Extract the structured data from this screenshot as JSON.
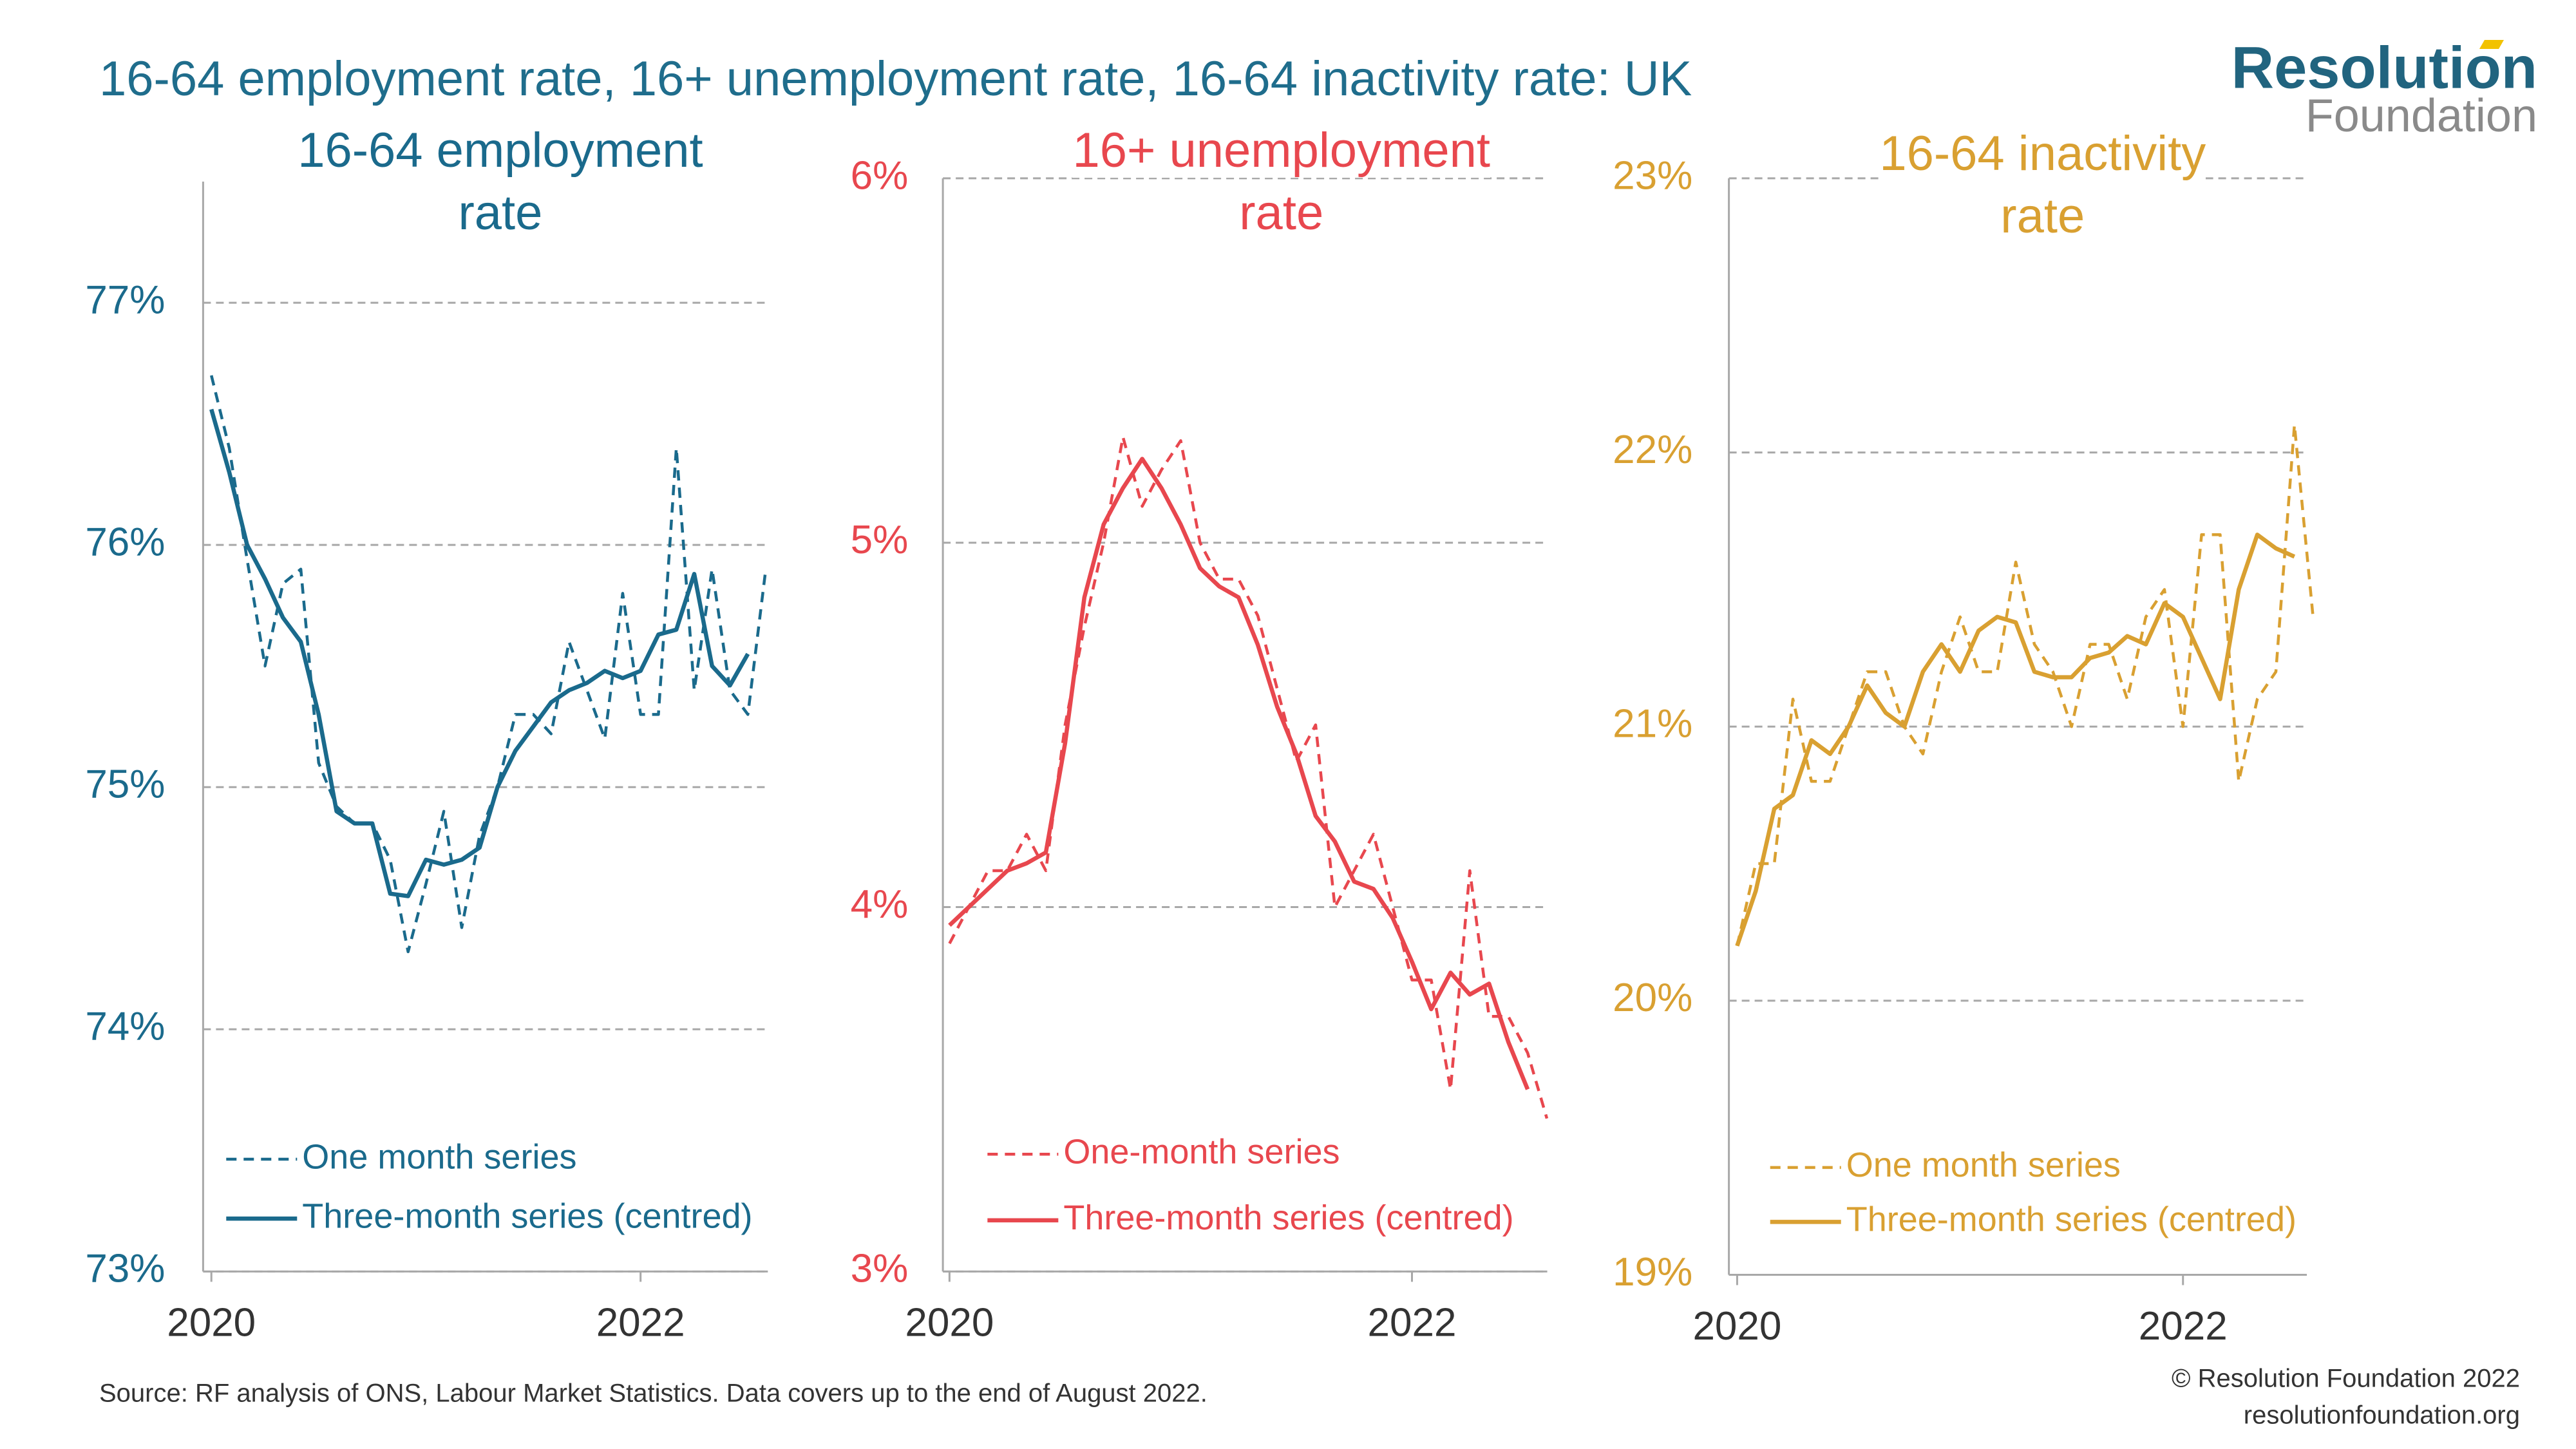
{
  "title": "16-64 employment rate, 16+ unemployment rate, 16-64 inactivity rate: UK",
  "logo": {
    "line1": "Resolution",
    "line2": "Foundation"
  },
  "source": "Source: RF analysis of ONS, Labour Market Statistics. Data covers up to the end of August 2022.",
  "copyright": "© Resolution Foundation 2022",
  "website": "resolutionfoundation.org",
  "chart_data": [
    {
      "type": "line",
      "title": "16-64 employment rate",
      "legend": "lower left",
      "grid": true,
      "categories": [
        "2020",
        null,
        null,
        null,
        null,
        null,
        null,
        null,
        null,
        null,
        null,
        null,
        null,
        null,
        null,
        null,
        null,
        null,
        null,
        null,
        null,
        null,
        null,
        null,
        "2022",
        null,
        null,
        null,
        null,
        null,
        null,
        null
      ],
      "ylim": [
        73,
        77.5
      ],
      "yticks": [
        {
          "value": 73,
          "label": "73%"
        },
        {
          "value": 74,
          "label": "74%"
        },
        {
          "value": 75,
          "label": "75%"
        },
        {
          "value": 76,
          "label": "76%"
        },
        {
          "value": 77,
          "label": "77%"
        }
      ],
      "series": [
        {
          "name": "One month series",
          "color": "#1a6a8c",
          "linestyle": "dashed",
          "values": [
            76.7,
            76.4,
            75.94,
            75.5,
            75.84,
            75.9,
            75.1,
            74.92,
            74.85,
            74.85,
            74.7,
            74.32,
            74.6,
            74.9,
            74.42,
            74.8,
            75.0,
            75.3,
            75.3,
            75.22,
            75.6,
            75.4,
            75.2,
            75.8,
            75.3,
            75.3,
            76.4,
            75.4,
            75.9,
            75.4,
            75.3,
            75.9
          ]
        },
        {
          "name": "Three-month series (centred)",
          "color": "#1a6a8c",
          "linestyle": "solid",
          "values": [
            76.56,
            76.3,
            76.0,
            75.86,
            75.7,
            75.6,
            75.3,
            74.9,
            74.85,
            74.85,
            74.56,
            74.55,
            74.7,
            74.68,
            74.7,
            74.75,
            75.0,
            75.15,
            75.25,
            75.35,
            75.4,
            75.43,
            75.48,
            75.45,
            75.48,
            75.63,
            75.65,
            75.88,
            75.5,
            75.42,
            75.55,
            null
          ]
        }
      ]
    },
    {
      "type": "line",
      "title": "16+ unemployment rate",
      "legend": "lower left",
      "grid": true,
      "categories": [
        "2020",
        null,
        null,
        null,
        null,
        null,
        null,
        null,
        null,
        null,
        null,
        null,
        null,
        null,
        null,
        null,
        null,
        null,
        null,
        null,
        null,
        null,
        null,
        null,
        "2022",
        null,
        null,
        null,
        null,
        null,
        null,
        null
      ],
      "ylim": [
        3,
        6
      ],
      "yticks": [
        {
          "value": 3,
          "label": "3%"
        },
        {
          "value": 4,
          "label": "4%"
        },
        {
          "value": 5,
          "label": "5%"
        },
        {
          "value": 6,
          "label": "6%"
        }
      ],
      "series": [
        {
          "name": "One-month series",
          "color": "#e8474e",
          "linestyle": "dashed",
          "values": [
            3.9,
            4.0,
            4.1,
            4.1,
            4.2,
            4.1,
            4.5,
            4.77,
            5.0,
            5.29,
            5.1,
            5.2,
            5.28,
            5.0,
            4.9,
            4.9,
            4.8,
            4.6,
            4.4,
            4.5,
            4.0,
            4.1,
            4.2,
            4.0,
            3.8,
            3.8,
            3.5,
            4.1,
            3.7,
            3.7,
            3.6,
            3.42
          ]
        },
        {
          "name": "Three-month series (centred)",
          "color": "#e8474e",
          "linestyle": "solid",
          "values": [
            3.95,
            4.0,
            4.05,
            4.1,
            4.12,
            4.15,
            4.45,
            4.85,
            5.05,
            5.15,
            5.23,
            5.15,
            5.05,
            4.93,
            4.88,
            4.85,
            4.72,
            4.55,
            4.42,
            4.25,
            4.18,
            4.07,
            4.05,
            3.97,
            3.85,
            3.72,
            3.82,
            3.76,
            3.79,
            3.63,
            3.5,
            null
          ]
        }
      ]
    },
    {
      "type": "line",
      "title": "16-64 inactivity rate",
      "legend": "lower left",
      "grid": true,
      "categories": [
        "2020",
        null,
        null,
        null,
        null,
        null,
        null,
        null,
        null,
        null,
        null,
        null,
        null,
        null,
        null,
        null,
        null,
        null,
        null,
        null,
        null,
        null,
        null,
        null,
        "2022",
        null,
        null,
        null,
        null,
        null,
        null,
        null
      ],
      "ylim": [
        19,
        23
      ],
      "yticks": [
        {
          "value": 19,
          "label": "19%"
        },
        {
          "value": 20,
          "label": "20%"
        },
        {
          "value": 21,
          "label": "21%"
        },
        {
          "value": 22,
          "label": "22%"
        },
        {
          "value": 23,
          "label": "23%"
        }
      ],
      "series": [
        {
          "name": "One month series",
          "color": "#d9a031",
          "linestyle": "dashed",
          "values": [
            20.2,
            20.5,
            20.5,
            21.1,
            20.8,
            20.8,
            21.0,
            21.2,
            21.2,
            21.0,
            20.9,
            21.2,
            21.4,
            21.2,
            21.2,
            21.6,
            21.3,
            21.2,
            21.0,
            21.3,
            21.3,
            21.1,
            21.4,
            21.5,
            21.0,
            21.7,
            21.7,
            20.8,
            21.1,
            21.2,
            22.1,
            21.4
          ]
        },
        {
          "name": "Three-month series (centred)",
          "color": "#d9a031",
          "linestyle": "solid",
          "values": [
            20.2,
            20.4,
            20.7,
            20.75,
            20.95,
            20.9,
            21.0,
            21.15,
            21.05,
            21.0,
            21.2,
            21.3,
            21.2,
            21.35,
            21.4,
            21.38,
            21.2,
            21.18,
            21.18,
            21.25,
            21.27,
            21.33,
            21.3,
            21.45,
            21.4,
            21.25,
            21.1,
            21.5,
            21.7,
            21.65,
            21.62,
            null
          ]
        }
      ]
    }
  ]
}
